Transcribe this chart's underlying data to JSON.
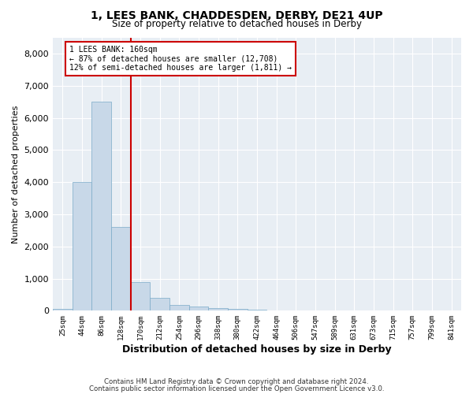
{
  "title_line1": "1, LEES BANK, CHADDESDEN, DERBY, DE21 4UP",
  "title_line2": "Size of property relative to detached houses in Derby",
  "xlabel": "Distribution of detached houses by size in Derby",
  "ylabel": "Number of detached properties",
  "bin_labels": [
    "25sqm",
    "44sqm",
    "86sqm",
    "128sqm",
    "170sqm",
    "212sqm",
    "254sqm",
    "296sqm",
    "338sqm",
    "380sqm",
    "422sqm",
    "464sqm",
    "506sqm",
    "547sqm",
    "589sqm",
    "631sqm",
    "673sqm",
    "715sqm",
    "757sqm",
    "799sqm",
    "841sqm"
  ],
  "bar_heights": [
    50,
    4000,
    6500,
    2600,
    900,
    400,
    170,
    120,
    80,
    55,
    30,
    15,
    10,
    8,
    5,
    4,
    3,
    2,
    1,
    1,
    0
  ],
  "bar_color": "#c8d8e8",
  "bar_edgecolor": "#7aaac8",
  "vline_color": "#cc0000",
  "annotation_text": "1 LEES BANK: 160sqm\n← 87% of detached houses are smaller (12,708)\n12% of semi-detached houses are larger (1,811) →",
  "annotation_box_edgecolor": "#cc0000",
  "annotation_box_facecolor": "#ffffff",
  "ylim": [
    0,
    8500
  ],
  "yticks": [
    0,
    1000,
    2000,
    3000,
    4000,
    5000,
    6000,
    7000,
    8000
  ],
  "background_color": "#e8eef4",
  "grid_color": "#ffffff",
  "footer_line1": "Contains HM Land Registry data © Crown copyright and database right 2024.",
  "footer_line2": "Contains public sector information licensed under the Open Government Licence v3.0."
}
